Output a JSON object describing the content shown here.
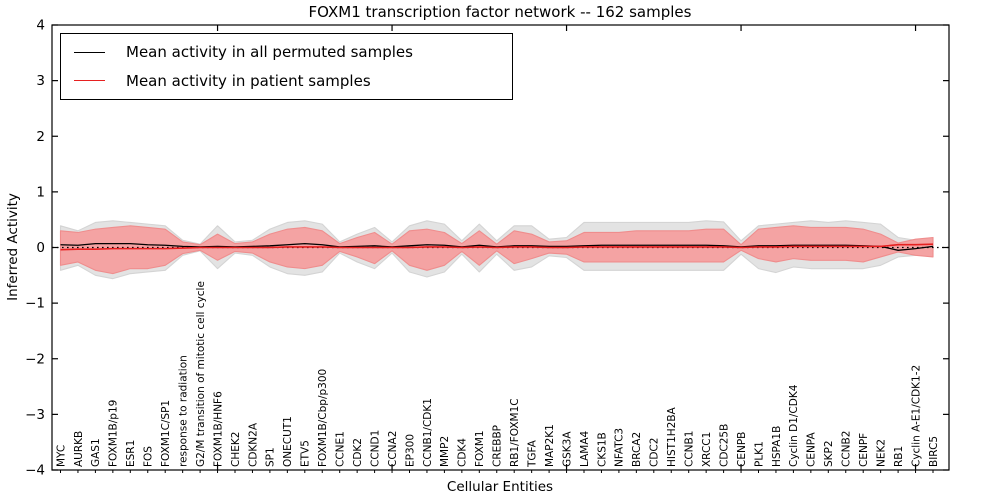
{
  "title": "FOXM1 transcription factor network -- 162 samples",
  "legend": {
    "items": [
      {
        "label": "Mean activity in all permuted samples",
        "color": "#000000"
      },
      {
        "label": "Mean activity in patient samples",
        "color": "#e62020"
      }
    ]
  },
  "colors": {
    "permuted_band_fill": "#e3e3e3",
    "permuted_band_edge": "#d4d4d4",
    "patient_band_fill": "#f4a3a3",
    "patient_band_edge": "#ef8d8d",
    "permuted_mean_line": "#000000",
    "patient_mean_line": "#e62020",
    "zero_line": "#000000",
    "axis": "#000000"
  },
  "chart_data": {
    "type": "line",
    "title": "FOXM1 transcription factor network -- 162 samples",
    "xlabel": "Cellular Entities",
    "ylabel": "Inferred Activity",
    "ylim": [
      -4,
      4
    ],
    "yticks": [
      4,
      3,
      2,
      1,
      0,
      -1,
      -2,
      -3,
      -4
    ],
    "x_major_tick_indices": [
      9,
      19,
      29,
      39,
      49
    ],
    "grid": false,
    "legend_position": "upper left",
    "zero_reference_line": "dotted black at y=0",
    "categories": [
      "MYC",
      "AURKB",
      "GAS1",
      "FOXM1B/p19",
      "ESR1",
      "FOS",
      "FOXM1C/SP1",
      "response to radiation",
      "G2/M transition of mitotic cell cycle",
      "FOXM1B/HNF6",
      "CHEK2",
      "CDKN2A",
      "SP1",
      "ONECUT1",
      "ETV5",
      "FOXM1B/Cbp/p300",
      "CCNE1",
      "CDK2",
      "CCND1",
      "CCNA2",
      "EP300",
      "CCNB1/CDK1",
      "MMP2",
      "CDK4",
      "FOXM1",
      "CREBBP",
      "RB1/FOXM1C",
      "TGFA",
      "MAP2K1",
      "GSK3A",
      "LAMA4",
      "CKS1B",
      "NFATC3",
      "BRCA2",
      "CDC2",
      "HIST1H2BA",
      "CCNB1",
      "XRCC1",
      "CDC25B",
      "CENPB",
      "PLK1",
      "HSPA1B",
      "Cyclin D1/CDK4",
      "CENPA",
      "SKP2",
      "CCNB2",
      "CENPF",
      "NEK2",
      "RB1",
      "Cyclin A-E1/CDK1-2",
      "BIRC5"
    ],
    "series": [
      {
        "name": "Permuted samples activity range",
        "kind": "band",
        "fill": "#e3e3e3",
        "edge": "#d4d4d4",
        "upper": [
          0.39,
          0.3,
          0.45,
          0.48,
          0.45,
          0.42,
          0.39,
          0.13,
          0.06,
          0.39,
          0.1,
          0.13,
          0.33,
          0.45,
          0.48,
          0.42,
          0.1,
          0.24,
          0.36,
          0.1,
          0.39,
          0.48,
          0.42,
          0.12,
          0.42,
          0.12,
          0.39,
          0.39,
          0.15,
          0.18,
          0.45,
          0.45,
          0.45,
          0.45,
          0.45,
          0.45,
          0.45,
          0.48,
          0.46,
          0.12,
          0.39,
          0.42,
          0.45,
          0.48,
          0.45,
          0.48,
          0.45,
          0.42,
          0.18,
          0.13,
          0.07
        ],
        "lower": [
          -0.41,
          -0.32,
          -0.5,
          -0.56,
          -0.47,
          -0.44,
          -0.41,
          -0.14,
          -0.06,
          -0.38,
          -0.1,
          -0.14,
          -0.35,
          -0.47,
          -0.5,
          -0.44,
          -0.1,
          -0.26,
          -0.38,
          -0.1,
          -0.44,
          -0.53,
          -0.44,
          -0.12,
          -0.44,
          -0.12,
          -0.41,
          -0.35,
          -0.15,
          -0.18,
          -0.41,
          -0.41,
          -0.41,
          -0.41,
          -0.41,
          -0.41,
          -0.41,
          -0.41,
          -0.41,
          -0.12,
          -0.38,
          -0.45,
          -0.35,
          -0.38,
          -0.38,
          -0.38,
          -0.38,
          -0.32,
          -0.17,
          -0.14,
          -0.08
        ]
      },
      {
        "name": "Patient samples activity range",
        "kind": "band",
        "fill": "#f4a3a3",
        "edge": "#ef8d8d",
        "upper": [
          0.3,
          0.27,
          0.33,
          0.36,
          0.39,
          0.36,
          0.33,
          0.1,
          0.05,
          0.24,
          0.07,
          0.1,
          0.24,
          0.33,
          0.36,
          0.3,
          0.07,
          0.18,
          0.27,
          0.06,
          0.3,
          0.33,
          0.27,
          0.07,
          0.3,
          0.06,
          0.3,
          0.24,
          0.1,
          0.12,
          0.27,
          0.27,
          0.27,
          0.3,
          0.3,
          0.3,
          0.3,
          0.33,
          0.33,
          0.05,
          0.33,
          0.36,
          0.39,
          0.36,
          0.36,
          0.36,
          0.33,
          0.24,
          0.08,
          0.15,
          0.18
        ],
        "lower": [
          -0.32,
          -0.26,
          -0.41,
          -0.47,
          -0.38,
          -0.38,
          -0.32,
          -0.11,
          -0.05,
          -0.23,
          -0.07,
          -0.1,
          -0.26,
          -0.35,
          -0.38,
          -0.32,
          -0.07,
          -0.17,
          -0.29,
          -0.06,
          -0.32,
          -0.41,
          -0.32,
          -0.07,
          -0.32,
          -0.06,
          -0.29,
          -0.2,
          -0.1,
          -0.12,
          -0.26,
          -0.26,
          -0.26,
          -0.26,
          -0.26,
          -0.26,
          -0.26,
          -0.26,
          -0.26,
          -0.05,
          -0.2,
          -0.26,
          -0.2,
          -0.23,
          -0.23,
          -0.23,
          -0.26,
          -0.17,
          -0.08,
          -0.14,
          -0.17
        ]
      },
      {
        "name": "Mean activity in all permuted samples",
        "kind": "line",
        "color": "#000000",
        "width": 1.3,
        "values": [
          0.05,
          0.04,
          0.07,
          0.07,
          0.07,
          0.05,
          0.04,
          0.02,
          0.01,
          0.02,
          0.01,
          0.02,
          0.03,
          0.05,
          0.07,
          0.05,
          0.01,
          0.02,
          0.03,
          0.01,
          0.03,
          0.05,
          0.04,
          0.01,
          0.04,
          0.01,
          0.03,
          0.03,
          0.02,
          0.02,
          0.03,
          0.04,
          0.04,
          0.04,
          0.04,
          0.04,
          0.04,
          0.04,
          0.03,
          0.01,
          0.03,
          0.03,
          0.04,
          0.04,
          0.04,
          0.04,
          0.03,
          0.02,
          -0.05,
          -0.02,
          0.02
        ]
      },
      {
        "name": "Mean activity in patient samples",
        "kind": "line",
        "color": "#e62020",
        "width": 1.6,
        "values": [
          -0.04,
          -0.03,
          -0.03,
          -0.02,
          -0.02,
          -0.02,
          -0.02,
          -0.01,
          0,
          0,
          0,
          0,
          0,
          0.01,
          0.01,
          0.01,
          0,
          0,
          0,
          0,
          0,
          0.01,
          0.01,
          0,
          0.01,
          0,
          0.01,
          0.01,
          0,
          0,
          0.01,
          0.01,
          0.01,
          0.01,
          0.01,
          0.01,
          0.01,
          0.01,
          0.01,
          0,
          0.01,
          0.01,
          0.02,
          0.02,
          0.02,
          0.02,
          0.02,
          0.02,
          0.05,
          0.05,
          0.06
        ]
      }
    ]
  }
}
